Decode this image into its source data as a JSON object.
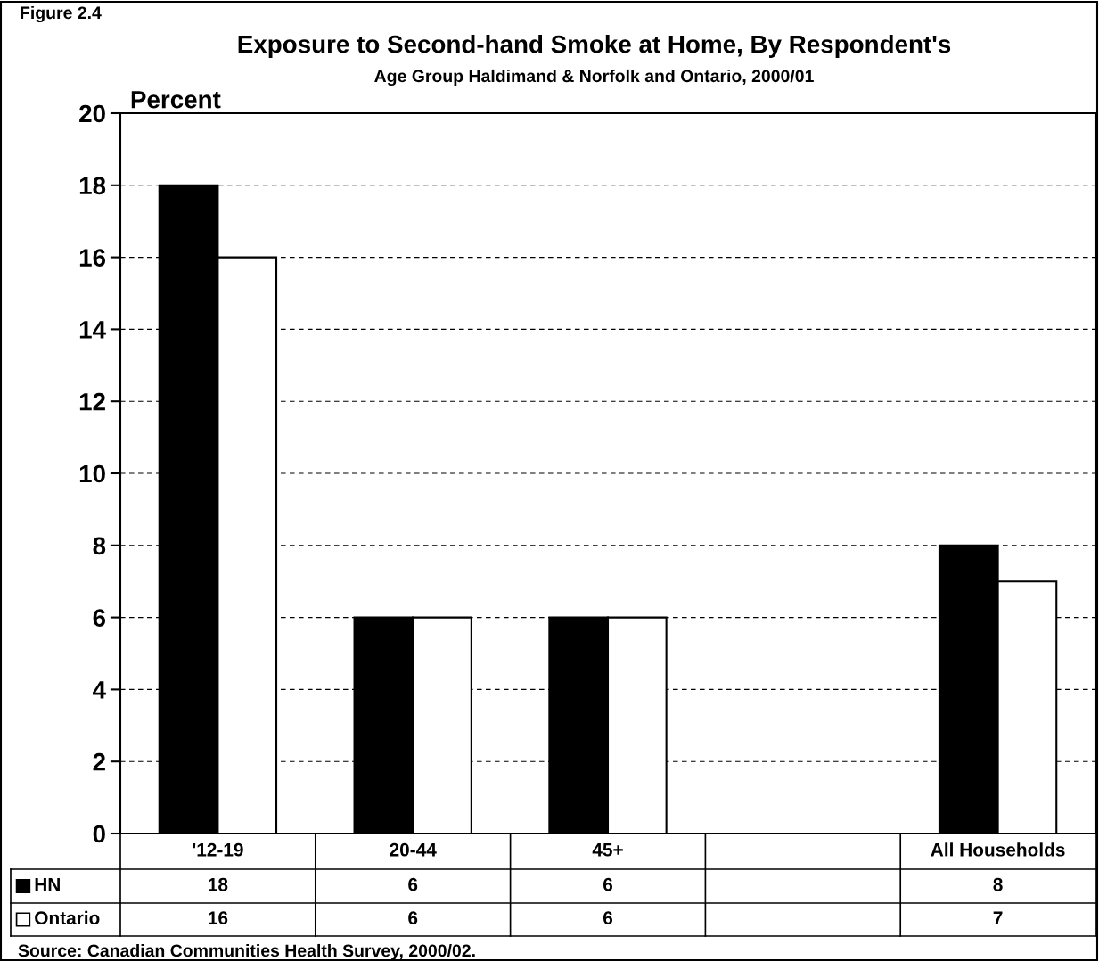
{
  "chart_data": {
    "type": "bar",
    "title": "Exposure to Second-hand Smoke at Home, By Respondent's",
    "subtitle": "Age Group Haldimand & Norfolk and Ontario, 2000/01",
    "ylabel": "Percent",
    "categories": [
      "'12-19",
      "20-44",
      "45+",
      null,
      "All Households"
    ],
    "series": [
      {
        "name": "HN",
        "color": "#000000",
        "values": [
          18,
          6,
          6,
          null,
          8
        ]
      },
      {
        "name": "Ontario",
        "color": "#ffffff",
        "values": [
          16,
          6,
          6,
          null,
          7
        ]
      }
    ],
    "ylim": [
      0,
      20
    ],
    "yticks": [
      0,
      2,
      4,
      6,
      8,
      10,
      12,
      14,
      16,
      18,
      20
    ],
    "grid": "y",
    "legend": "bottom",
    "data_labels": true,
    "annotations": [
      "Figure 2.4",
      "Source: Canadian Communities Health Survey, 2000/02."
    ]
  }
}
